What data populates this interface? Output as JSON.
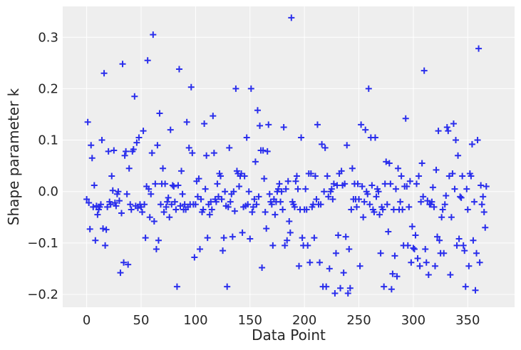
{
  "chart_data": {
    "type": "scatter",
    "title": "",
    "xlabel": "Data Point",
    "ylabel": "Shape parameter k",
    "xlim": [
      -22,
      393
    ],
    "ylim": [
      -0.225,
      0.36
    ],
    "xticks": [
      0,
      50,
      100,
      150,
      200,
      250,
      300,
      350
    ],
    "xtick_labels": [
      "0",
      "50",
      "100",
      "150",
      "200",
      "250",
      "300",
      "350"
    ],
    "yticks": [
      -0.2,
      -0.1,
      0.0,
      0.1,
      0.2,
      0.3
    ],
    "ytick_labels": [
      "−0.2",
      "−0.1",
      "0.0",
      "0.1",
      "0.2",
      "0.3"
    ],
    "grid": true,
    "marker": "plus",
    "marker_color": "#2a2eec",
    "background_color": "#eeeeee",
    "points": [
      [
        0,
        -0.015
      ],
      [
        1,
        0.135
      ],
      [
        2,
        -0.022
      ],
      [
        3,
        -0.073
      ],
      [
        4,
        0.09
      ],
      [
        5,
        0.065
      ],
      [
        6,
        -0.03
      ],
      [
        7,
        0.012
      ],
      [
        8,
        -0.095
      ],
      [
        9,
        -0.028
      ],
      [
        10,
        -0.045
      ],
      [
        11,
        -0.035
      ],
      [
        12,
        -0.03
      ],
      [
        13,
        -0.025
      ],
      [
        14,
        0.1
      ],
      [
        15,
        -0.072
      ],
      [
        16,
        0.23
      ],
      [
        17,
        -0.105
      ],
      [
        18,
        -0.074
      ],
      [
        19,
        -0.03
      ],
      [
        20,
        0.078
      ],
      [
        21,
        -0.02
      ],
      [
        22,
        -0.025
      ],
      [
        23,
        0.03
      ],
      [
        24,
        0.002
      ],
      [
        25,
        0.08
      ],
      [
        26,
        -0.022
      ],
      [
        27,
        -0.028
      ],
      [
        28,
        -0.005
      ],
      [
        29,
        0.0
      ],
      [
        30,
        -0.018
      ],
      [
        31,
        -0.158
      ],
      [
        32,
        -0.042
      ],
      [
        33,
        0.248
      ],
      [
        34,
        -0.138
      ],
      [
        35,
        0.07
      ],
      [
        36,
        0.078
      ],
      [
        37,
        -0.005
      ],
      [
        38,
        -0.142
      ],
      [
        39,
        0.045
      ],
      [
        40,
        -0.025
      ],
      [
        41,
        -0.035
      ],
      [
        42,
        0.078
      ],
      [
        43,
        0.082
      ],
      [
        44,
        0.185
      ],
      [
        45,
        -0.028
      ],
      [
        46,
        0.095
      ],
      [
        47,
        -0.032
      ],
      [
        48,
        0.105
      ],
      [
        49,
        -0.025
      ],
      [
        50,
        -0.03
      ],
      [
        51,
        -0.04
      ],
      [
        52,
        0.118
      ],
      [
        53,
        -0.025
      ],
      [
        54,
        -0.09
      ],
      [
        55,
        0.01
      ],
      [
        56,
        0.255
      ],
      [
        57,
        0.005
      ],
      [
        58,
        -0.05
      ],
      [
        59,
        -0.005
      ],
      [
        60,
        0.075
      ],
      [
        61,
        0.305
      ],
      [
        62,
        -0.058
      ],
      [
        63,
        0.015
      ],
      [
        64,
        -0.112
      ],
      [
        65,
        0.09
      ],
      [
        66,
        -0.095
      ],
      [
        67,
        0.152
      ],
      [
        68,
        -0.025
      ],
      [
        69,
        0.015
      ],
      [
        70,
        0.045
      ],
      [
        71,
        -0.04
      ],
      [
        72,
        0.015
      ],
      [
        73,
        -0.03
      ],
      [
        74,
        -0.02
      ],
      [
        75,
        -0.012
      ],
      [
        76,
        -0.05
      ],
      [
        77,
        0.12
      ],
      [
        78,
        -0.025
      ],
      [
        79,
        0.012
      ],
      [
        80,
        0.01
      ],
      [
        81,
        -0.02
      ],
      [
        82,
        -0.035
      ],
      [
        83,
        -0.185
      ],
      [
        84,
        0.012
      ],
      [
        85,
        0.238
      ],
      [
        86,
        -0.028
      ],
      [
        87,
        0.04
      ],
      [
        88,
        -0.005
      ],
      [
        89,
        -0.035
      ],
      [
        90,
        -0.025
      ],
      [
        91,
        -0.035
      ],
      [
        92,
        0.135
      ],
      [
        93,
        -0.03
      ],
      [
        94,
        0.085
      ],
      [
        95,
        -0.025
      ],
      [
        96,
        0.203
      ],
      [
        97,
        0.075
      ],
      [
        98,
        -0.025
      ],
      [
        99,
        -0.128
      ],
      [
        100,
        -0.025
      ],
      [
        101,
        0.02
      ],
      [
        102,
        -0.01
      ],
      [
        103,
        0.025
      ],
      [
        104,
        -0.112
      ],
      [
        105,
        -0.015
      ],
      [
        106,
        -0.04
      ],
      [
        107,
        -0.035
      ],
      [
        108,
        0.132
      ],
      [
        109,
        0.005
      ],
      [
        110,
        0.07
      ],
      [
        111,
        -0.09
      ],
      [
        112,
        -0.025
      ],
      [
        113,
        -0.045
      ],
      [
        114,
        -0.02
      ],
      [
        115,
        -0.035
      ],
      [
        116,
        0.147
      ],
      [
        117,
        0.075
      ],
      [
        118,
        -0.015
      ],
      [
        119,
        -0.02
      ],
      [
        120,
        0.015
      ],
      [
        121,
        -0.01
      ],
      [
        122,
        0.035
      ],
      [
        123,
        0.03
      ],
      [
        124,
        -0.015
      ],
      [
        125,
        -0.115
      ],
      [
        126,
        -0.09
      ],
      [
        127,
        0.0
      ],
      [
        128,
        -0.028
      ],
      [
        129,
        -0.185
      ],
      [
        130,
        -0.03
      ],
      [
        131,
        0.085
      ],
      [
        132,
        -0.02
      ],
      [
        133,
        -0.005
      ],
      [
        134,
        -0.088
      ],
      [
        135,
        0.0
      ],
      [
        136,
        -0.038
      ],
      [
        137,
        0.2
      ],
      [
        138,
        0.04
      ],
      [
        139,
        0.035
      ],
      [
        140,
        0.01
      ],
      [
        141,
        0.03
      ],
      [
        142,
        0.035
      ],
      [
        143,
        -0.08
      ],
      [
        144,
        -0.03
      ],
      [
        145,
        0.03
      ],
      [
        146,
        -0.028
      ],
      [
        147,
        0.105
      ],
      [
        148,
        -0.025
      ],
      [
        149,
        0.0
      ],
      [
        150,
        -0.092
      ],
      [
        151,
        0.2
      ],
      [
        152,
        -0.04
      ],
      [
        153,
        -0.03
      ],
      [
        154,
        -0.015
      ],
      [
        155,
        0.058
      ],
      [
        156,
        -0.025
      ],
      [
        157,
        0.158
      ],
      [
        158,
        -0.01
      ],
      [
        159,
        0.128
      ],
      [
        160,
        0.08
      ],
      [
        161,
        -0.148
      ],
      [
        162,
        0.08
      ],
      [
        163,
        0.025
      ],
      [
        164,
        -0.04
      ],
      [
        165,
        -0.072
      ],
      [
        166,
        0.078
      ],
      [
        167,
        0.13
      ],
      [
        168,
        -0.005
      ],
      [
        169,
        -0.02
      ],
      [
        170,
        -0.025
      ],
      [
        171,
        -0.105
      ],
      [
        172,
        -0.015
      ],
      [
        173,
        -0.045
      ],
      [
        174,
        -0.02
      ],
      [
        175,
        0.0
      ],
      [
        176,
        0.005
      ],
      [
        177,
        0.015
      ],
      [
        178,
        -0.02
      ],
      [
        179,
        0.0
      ],
      [
        180,
        -0.035
      ],
      [
        181,
        0.125
      ],
      [
        182,
        -0.105
      ],
      [
        183,
        0.005
      ],
      [
        184,
        -0.095
      ],
      [
        185,
        0.02
      ],
      [
        186,
        -0.058
      ],
      [
        187,
        -0.08
      ],
      [
        188,
        0.338
      ],
      [
        189,
        -0.02
      ],
      [
        190,
        -0.025
      ],
      [
        191,
        -0.03
      ],
      [
        192,
        0.02
      ],
      [
        193,
        0.03
      ],
      [
        194,
        0.005
      ],
      [
        195,
        -0.145
      ],
      [
        196,
        -0.035
      ],
      [
        197,
        0.105
      ],
      [
        198,
        -0.09
      ],
      [
        199,
        -0.105
      ],
      [
        200,
        -0.035
      ],
      [
        201,
        0.005
      ],
      [
        202,
        -0.035
      ],
      [
        203,
        -0.105
      ],
      [
        204,
        0.035
      ],
      [
        205,
        -0.138
      ],
      [
        206,
        0.035
      ],
      [
        207,
        -0.03
      ],
      [
        208,
        -0.025
      ],
      [
        209,
        -0.09
      ],
      [
        210,
        0.03
      ],
      [
        211,
        -0.015
      ],
      [
        212,
        0.13
      ],
      [
        213,
        -0.025
      ],
      [
        214,
        -0.138
      ],
      [
        215,
        -0.025
      ],
      [
        216,
        0.092
      ],
      [
        217,
        -0.185
      ],
      [
        218,
        0.0
      ],
      [
        219,
        0.085
      ],
      [
        220,
        -0.185
      ],
      [
        221,
        0.03
      ],
      [
        222,
        -0.01
      ],
      [
        223,
        -0.15
      ],
      [
        224,
        0.0
      ],
      [
        225,
        0.005
      ],
      [
        226,
        -0.015
      ],
      [
        227,
        0.015
      ],
      [
        228,
        -0.198
      ],
      [
        229,
        -0.12
      ],
      [
        230,
        0.012
      ],
      [
        231,
        -0.085
      ],
      [
        232,
        0.035
      ],
      [
        233,
        -0.188
      ],
      [
        234,
        0.04
      ],
      [
        235,
        0.012
      ],
      [
        236,
        -0.158
      ],
      [
        237,
        0.015
      ],
      [
        238,
        -0.088
      ],
      [
        239,
        0.09
      ],
      [
        240,
        -0.198
      ],
      [
        241,
        -0.112
      ],
      [
        242,
        -0.188
      ],
      [
        243,
        -0.035
      ],
      [
        244,
        0.045
      ],
      [
        245,
        -0.015
      ],
      [
        246,
        0.015
      ],
      [
        247,
        -0.015
      ],
      [
        248,
        -0.03
      ],
      [
        249,
        0.015
      ],
      [
        250,
        -0.015
      ],
      [
        251,
        -0.145
      ],
      [
        252,
        0.13
      ],
      [
        253,
        0.01
      ],
      [
        254,
        -0.05
      ],
      [
        255,
        -0.02
      ],
      [
        256,
        0.12
      ],
      [
        257,
        0.0
      ],
      [
        258,
        -0.005
      ],
      [
        259,
        0.2
      ],
      [
        260,
        -0.025
      ],
      [
        261,
        0.105
      ],
      [
        262,
        0.012
      ],
      [
        263,
        -0.035
      ],
      [
        264,
        -0.04
      ],
      [
        265,
        0.105
      ],
      [
        266,
        -0.01
      ],
      [
        267,
        0.005
      ],
      [
        268,
        0.0
      ],
      [
        269,
        -0.045
      ],
      [
        270,
        -0.12
      ],
      [
        271,
        -0.03
      ],
      [
        272,
        -0.035
      ],
      [
        273,
        -0.185
      ],
      [
        274,
        0.015
      ],
      [
        275,
        0.058
      ],
      [
        276,
        -0.025
      ],
      [
        277,
        -0.078
      ],
      [
        278,
        0.055
      ],
      [
        279,
        0.015
      ],
      [
        280,
        -0.19
      ],
      [
        281,
        -0.16
      ],
      [
        282,
        -0.035
      ],
      [
        283,
        -0.125
      ],
      [
        284,
        0.005
      ],
      [
        285,
        -0.165
      ],
      [
        286,
        0.045
      ],
      [
        287,
        -0.035
      ],
      [
        288,
        -0.02
      ],
      [
        289,
        0.03
      ],
      [
        290,
        -0.035
      ],
      [
        291,
        -0.105
      ],
      [
        292,
        0.01
      ],
      [
        293,
        0.142
      ],
      [
        294,
        0.01
      ],
      [
        295,
        -0.105
      ],
      [
        296,
        -0.03
      ],
      [
        297,
        0.02
      ],
      [
        298,
        -0.138
      ],
      [
        299,
        -0.068
      ],
      [
        300,
        -0.11
      ],
      [
        301,
        -0.112
      ],
      [
        302,
        -0.085
      ],
      [
        303,
        0.015
      ],
      [
        304,
        -0.13
      ],
      [
        305,
        0.03
      ],
      [
        306,
        -0.145
      ],
      [
        307,
        -0.02
      ],
      [
        308,
        0.055
      ],
      [
        309,
        -0.01
      ],
      [
        310,
        0.235
      ],
      [
        311,
        -0.112
      ],
      [
        312,
        -0.138
      ],
      [
        313,
        -0.018
      ],
      [
        314,
        -0.162
      ],
      [
        315,
        -0.025
      ],
      [
        316,
        -0.025
      ],
      [
        317,
        -0.02
      ],
      [
        318,
        0.008
      ],
      [
        319,
        -0.03
      ],
      [
        320,
        -0.145
      ],
      [
        321,
        0.042
      ],
      [
        322,
        -0.088
      ],
      [
        323,
        0.118
      ],
      [
        324,
        -0.095
      ],
      [
        325,
        -0.12
      ],
      [
        326,
        -0.05
      ],
      [
        327,
        -0.035
      ],
      [
        328,
        -0.12
      ],
      [
        329,
        -0.025
      ],
      [
        330,
        -0.008
      ],
      [
        331,
        0.125
      ],
      [
        332,
        0.118
      ],
      [
        333,
        0.03
      ],
      [
        334,
        -0.162
      ],
      [
        335,
        -0.05
      ],
      [
        336,
        0.035
      ],
      [
        337,
        0.132
      ],
      [
        338,
        0.005
      ],
      [
        339,
        0.1
      ],
      [
        340,
        -0.105
      ],
      [
        341,
        0.07
      ],
      [
        342,
        -0.092
      ],
      [
        343,
        -0.01
      ],
      [
        344,
        -0.012
      ],
      [
        345,
        0.03
      ],
      [
        346,
        -0.105
      ],
      [
        347,
        -0.115
      ],
      [
        348,
        -0.185
      ],
      [
        349,
        0.005
      ],
      [
        350,
        -0.035
      ],
      [
        351,
        -0.145
      ],
      [
        352,
        0.035
      ],
      [
        353,
        0.03
      ],
      [
        354,
        0.092
      ],
      [
        355,
        -0.095
      ],
      [
        356,
        -0.02
      ],
      [
        357,
        -0.192
      ],
      [
        358,
        -0.12
      ],
      [
        359,
        0.1
      ],
      [
        360,
        0.278
      ],
      [
        361,
        -0.138
      ],
      [
        362,
        0.012
      ],
      [
        363,
        -0.025
      ],
      [
        364,
        -0.01
      ],
      [
        365,
        -0.04
      ],
      [
        366,
        -0.07
      ],
      [
        367,
        0.01
      ]
    ]
  }
}
